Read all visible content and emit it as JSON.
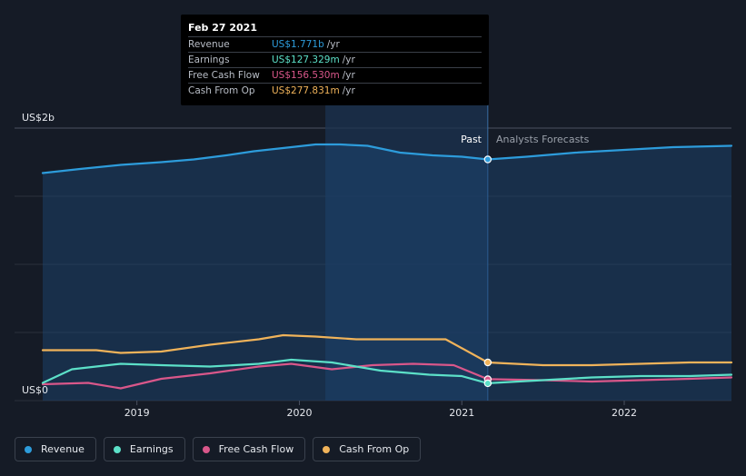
{
  "tooltip": {
    "date": "Feb 27 2021",
    "rows": [
      {
        "label": "Revenue",
        "value": "US$1.771b",
        "unit": "/yr",
        "color": "#2d9cdb"
      },
      {
        "label": "Earnings",
        "value": "US$127.329m",
        "unit": "/yr",
        "color": "#5ce0c8"
      },
      {
        "label": "Free Cash Flow",
        "value": "US$156.530m",
        "unit": "/yr",
        "color": "#d9578a"
      },
      {
        "label": "Cash From Op",
        "value": "US$277.831m",
        "unit": "/yr",
        "color": "#f0b35a"
      }
    ]
  },
  "regions": {
    "past": "Past",
    "forecast": "Analysts Forecasts"
  },
  "legend": [
    {
      "label": "Revenue",
      "color": "#2d9cdb"
    },
    {
      "label": "Earnings",
      "color": "#5ce0c8"
    },
    {
      "label": "Free Cash Flow",
      "color": "#d9578a"
    },
    {
      "label": "Cash From Op",
      "color": "#f0b35a"
    }
  ],
  "chart_data": {
    "type": "line",
    "ylabel_top": "US$2b",
    "ylabel_bottom": "US$0",
    "ylim": [
      0,
      2.0
    ],
    "xlim": [
      2018.42,
      2022.66
    ],
    "x_ticks": [
      {
        "label": "2019",
        "x": 2019.0
      },
      {
        "label": "2020",
        "x": 2020.0
      },
      {
        "label": "2021",
        "x": 2021.0
      },
      {
        "label": "2022",
        "x": 2022.0
      }
    ],
    "past_end": 2021.16,
    "highlight_start": 2020.16,
    "grid": true,
    "series": [
      {
        "name": "Revenue",
        "color": "#2d9cdb",
        "fill": true,
        "x": [
          2018.42,
          2018.65,
          2018.9,
          2019.15,
          2019.35,
          2019.55,
          2019.72,
          2019.95,
          2020.1,
          2020.25,
          2020.42,
          2020.62,
          2020.82,
          2021.0,
          2021.16,
          2021.4,
          2021.7,
          2022.0,
          2022.3,
          2022.66
        ],
        "y": [
          1.67,
          1.7,
          1.73,
          1.75,
          1.77,
          1.8,
          1.83,
          1.86,
          1.88,
          1.88,
          1.87,
          1.82,
          1.8,
          1.79,
          1.77,
          1.79,
          1.82,
          1.84,
          1.86,
          1.87
        ]
      },
      {
        "name": "Cash From Op",
        "color": "#f0b35a",
        "fill": false,
        "x": [
          2018.42,
          2018.75,
          2018.9,
          2019.15,
          2019.45,
          2019.75,
          2019.9,
          2020.1,
          2020.35,
          2020.6,
          2020.9,
          2021.16,
          2021.5,
          2021.8,
          2022.1,
          2022.4,
          2022.66
        ],
        "y": [
          0.37,
          0.37,
          0.35,
          0.36,
          0.41,
          0.45,
          0.48,
          0.47,
          0.45,
          0.45,
          0.45,
          0.28,
          0.26,
          0.26,
          0.27,
          0.28,
          0.28
        ],
        "y_override_note": ""
      },
      {
        "name": "Earnings",
        "color": "#5ce0c8",
        "fill": false,
        "x": [
          2018.42,
          2018.6,
          2018.9,
          2019.15,
          2019.45,
          2019.75,
          2019.95,
          2020.2,
          2020.5,
          2020.8,
          2021.0,
          2021.16,
          2021.5,
          2021.8,
          2022.1,
          2022.4,
          2022.66
        ],
        "y": [
          0.13,
          0.23,
          0.27,
          0.26,
          0.25,
          0.27,
          0.3,
          0.28,
          0.22,
          0.19,
          0.18,
          0.127,
          0.15,
          0.17,
          0.18,
          0.18,
          0.19
        ],
        "y_override_note": ""
      },
      {
        "name": "Free Cash Flow",
        "color": "#d9578a",
        "fill": false,
        "x": [
          2018.42,
          2018.7,
          2018.9,
          2019.15,
          2019.45,
          2019.75,
          2019.95,
          2020.2,
          2020.45,
          2020.7,
          2020.95,
          2021.16,
          2021.5,
          2021.8,
          2022.1,
          2022.4,
          2022.66
        ],
        "y": [
          0.12,
          0.13,
          0.09,
          0.16,
          0.2,
          0.25,
          0.27,
          0.23,
          0.26,
          0.27,
          0.26,
          0.157,
          0.15,
          0.14,
          0.15,
          0.16,
          0.17
        ],
        "y_override_note": ""
      }
    ]
  }
}
